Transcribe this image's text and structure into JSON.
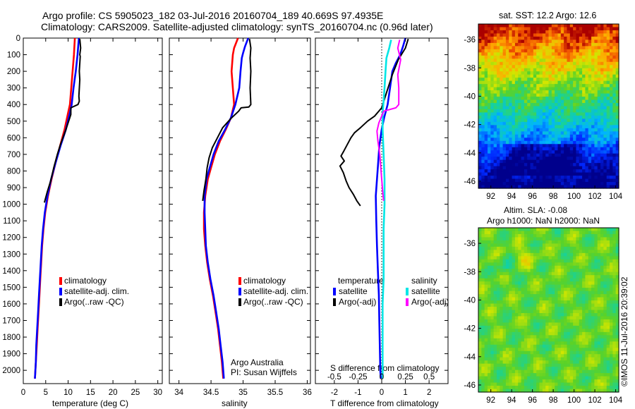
{
  "header": {
    "line1": "Argo profile: CS 5905023_182 03-Jul-2016 20160704_189 40.669S 97.4935E",
    "line2": "Climatology: CARS2009. Satellite-adjusted climatology: synTS_20160704.nc (0.96d later)"
  },
  "sst_title": "sat. SST: 12.2 Argo: 12.6",
  "sla_title1": "Altim. SLA: -0.08",
  "sla_title2": "Argo h1000: NaN h2000: NaN",
  "credit": "©IMOS 11-Jul-2016 20:39:02",
  "argo_credit": {
    "line1": "Argo Australia",
    "line2": "PI: Susan Wijffels"
  },
  "colors": {
    "climatology": "#ff0000",
    "satellite": "#0000ff",
    "argo": "#000000",
    "sal_satellite": "#00e6e6",
    "sal_argo": "#ff00ff"
  },
  "legend_tp": [
    "climatology",
    "satellite-adj. clim.",
    "Argo(..raw -QC)"
  ],
  "legend_diff": {
    "temp_head": "temperature",
    "sal_head": "salinity",
    "temp_items": [
      "satellite",
      "Argo(-adj)"
    ],
    "sal_items": [
      "satellite",
      "Argo(-adj)"
    ]
  },
  "chart_data": [
    {
      "type": "line",
      "xlabel": "temperature (deg C)",
      "xlim": [
        0,
        31
      ],
      "xticks": [
        "0",
        "5",
        "10",
        "15",
        "20",
        "25",
        "30"
      ],
      "ylim": [
        2080,
        0
      ],
      "yticks": [
        "0",
        "100",
        "200",
        "300",
        "400",
        "500",
        "600",
        "700",
        "800",
        "900",
        "1000",
        "1100",
        "1200",
        "1300",
        "1400",
        "1500",
        "1600",
        "1700",
        "1800",
        "1900",
        "2000"
      ],
      "series": [
        {
          "name": "climatology",
          "points": [
            [
              11.5,
              0
            ],
            [
              11.3,
              100
            ],
            [
              11,
              200
            ],
            [
              10.7,
              300
            ],
            [
              10.4,
              400
            ],
            [
              10,
              450
            ],
            [
              9.2,
              550
            ],
            [
              8.2,
              650
            ],
            [
              7.2,
              750
            ],
            [
              6.3,
              850
            ],
            [
              5.5,
              950
            ],
            [
              4.9,
              1050
            ],
            [
              4.5,
              1150
            ],
            [
              4.2,
              1250
            ],
            [
              4,
              1350
            ],
            [
              3.8,
              1450
            ],
            [
              3.6,
              1550
            ],
            [
              3.4,
              1650
            ],
            [
              3.2,
              1750
            ],
            [
              3,
              1850
            ],
            [
              2.8,
              1950
            ],
            [
              2.6,
              2050
            ]
          ]
        },
        {
          "name": "satellite-adj. clim.",
          "points": [
            [
              12.4,
              0
            ],
            [
              12.1,
              100
            ],
            [
              11.7,
              200
            ],
            [
              11.2,
              300
            ],
            [
              10.8,
              400
            ],
            [
              10.4,
              450
            ],
            [
              9.5,
              550
            ],
            [
              8.3,
              650
            ],
            [
              7.2,
              750
            ],
            [
              6.2,
              850
            ],
            [
              5.4,
              950
            ],
            [
              4.8,
              1050
            ],
            [
              4.4,
              1150
            ],
            [
              4.1,
              1250
            ],
            [
              3.9,
              1350
            ],
            [
              3.7,
              1450
            ],
            [
              3.5,
              1550
            ],
            [
              3.3,
              1650
            ],
            [
              3.1,
              1750
            ],
            [
              2.9,
              1850
            ],
            [
              2.8,
              1950
            ],
            [
              2.6,
              2050
            ]
          ]
        },
        {
          "name": "Argo(..raw -QC)",
          "points": [
            [
              12.6,
              5
            ],
            [
              12.8,
              60
            ],
            [
              12.6,
              100
            ],
            [
              12.7,
              110
            ],
            [
              12.5,
              200
            ],
            [
              12.6,
              250
            ],
            [
              12.4,
              350
            ],
            [
              12.5,
              380
            ],
            [
              12.2,
              400
            ],
            [
              10.6,
              420
            ],
            [
              10.6,
              460
            ],
            [
              9.4,
              560
            ],
            [
              8.3,
              640
            ],
            [
              7.6,
              700
            ],
            [
              6.8,
              780
            ],
            [
              6.1,
              860
            ],
            [
              5.3,
              930
            ],
            [
              4.7,
              990
            ]
          ]
        }
      ]
    },
    {
      "type": "line",
      "xlabel": "salinity",
      "xlim": [
        33.85,
        36.05
      ],
      "xticks": [
        "34",
        "34.5",
        "35",
        "35.5",
        "36"
      ],
      "ylim": [
        2080,
        0
      ],
      "series": [
        {
          "name": "climatology",
          "points": [
            [
              34.92,
              0
            ],
            [
              34.86,
              60
            ],
            [
              34.84,
              100
            ],
            [
              34.83,
              150
            ],
            [
              34.82,
              200
            ],
            [
              34.84,
              300
            ],
            [
              34.86,
              400
            ],
            [
              34.81,
              480
            ],
            [
              34.73,
              550
            ],
            [
              34.64,
              620
            ],
            [
              34.56,
              700
            ],
            [
              34.5,
              780
            ],
            [
              34.45,
              850
            ],
            [
              34.41,
              950
            ],
            [
              34.39,
              1050
            ],
            [
              34.39,
              1150
            ],
            [
              34.41,
              1250
            ],
            [
              34.44,
              1350
            ],
            [
              34.48,
              1450
            ],
            [
              34.53,
              1550
            ],
            [
              34.57,
              1650
            ],
            [
              34.61,
              1750
            ],
            [
              34.64,
              1850
            ],
            [
              34.67,
              1950
            ],
            [
              34.69,
              2050
            ]
          ]
        },
        {
          "name": "satellite-adj. clim.",
          "points": [
            [
              35.08,
              0
            ],
            [
              35.03,
              50
            ],
            [
              35.0,
              90
            ],
            [
              34.98,
              120
            ],
            [
              34.96,
              200
            ],
            [
              34.94,
              300
            ],
            [
              34.88,
              400
            ],
            [
              34.81,
              480
            ],
            [
              34.72,
              550
            ],
            [
              34.62,
              620
            ],
            [
              34.54,
              700
            ],
            [
              34.48,
              780
            ],
            [
              34.43,
              850
            ],
            [
              34.4,
              950
            ],
            [
              34.4,
              1050
            ],
            [
              34.41,
              1150
            ],
            [
              34.42,
              1250
            ],
            [
              34.45,
              1350
            ],
            [
              34.49,
              1450
            ],
            [
              34.54,
              1550
            ],
            [
              34.58,
              1650
            ],
            [
              34.62,
              1750
            ],
            [
              34.65,
              1850
            ],
            [
              34.68,
              1950
            ],
            [
              34.7,
              2050
            ]
          ]
        },
        {
          "name": "Argo(..raw -QC)",
          "points": [
            [
              35.1,
              5
            ],
            [
              35.12,
              60
            ],
            [
              35.11,
              120
            ],
            [
              35.12,
              200
            ],
            [
              35.11,
              300
            ],
            [
              35.12,
              400
            ],
            [
              35.09,
              415
            ],
            [
              34.97,
              420
            ],
            [
              34.93,
              440
            ],
            [
              34.82,
              480
            ],
            [
              34.68,
              540
            ],
            [
              34.6,
              600
            ],
            [
              34.52,
              660
            ],
            [
              34.47,
              720
            ],
            [
              34.44,
              780
            ],
            [
              34.42,
              850
            ],
            [
              34.39,
              920
            ],
            [
              34.37,
              980
            ]
          ]
        }
      ]
    },
    {
      "type": "line",
      "xlabel": "T difference from climatology",
      "xlabel2": "S difference from climatology",
      "xlim": [
        -2.8,
        2.8
      ],
      "xticks": [
        "-2",
        "-1",
        "0",
        "1",
        "2"
      ],
      "xticks_top": [
        "-0.5",
        "-0.25",
        "0",
        "0.25",
        "0.5"
      ],
      "ylim": [
        2080,
        0
      ],
      "series": [
        {
          "name": "temperature satellite",
          "points": [
            [
              1.0,
              0
            ],
            [
              0.9,
              50
            ],
            [
              0.78,
              100
            ],
            [
              0.6,
              150
            ],
            [
              0.45,
              200
            ],
            [
              0.35,
              300
            ],
            [
              0.25,
              400
            ],
            [
              0.1,
              480
            ],
            [
              0.0,
              550
            ],
            [
              -0.1,
              650
            ],
            [
              -0.15,
              750
            ],
            [
              -0.2,
              850
            ],
            [
              -0.25,
              950
            ],
            [
              -0.23,
              1100
            ],
            [
              -0.2,
              1250
            ],
            [
              -0.16,
              1400
            ],
            [
              -0.12,
              1550
            ],
            [
              -0.1,
              1700
            ],
            [
              -0.08,
              1850
            ],
            [
              -0.06,
              2000
            ],
            [
              -0.04,
              2050
            ]
          ]
        },
        {
          "name": "temperature Argo(-adj)",
          "points": [
            [
              1.12,
              5
            ],
            [
              1.0,
              60
            ],
            [
              0.7,
              130
            ],
            [
              0.45,
              220
            ],
            [
              0.2,
              330
            ],
            [
              0.0,
              420
            ],
            [
              -0.3,
              470
            ],
            [
              -0.6,
              500
            ],
            [
              -0.9,
              540
            ],
            [
              -1.15,
              570
            ],
            [
              -1.3,
              600
            ],
            [
              -1.45,
              640
            ],
            [
              -1.6,
              680
            ],
            [
              -1.72,
              710
            ],
            [
              -1.58,
              740
            ],
            [
              -1.76,
              770
            ],
            [
              -1.62,
              810
            ],
            [
              -1.5,
              860
            ],
            [
              -1.38,
              900
            ],
            [
              -1.2,
              940
            ],
            [
              -1.05,
              980
            ],
            [
              -0.9,
              1010
            ]
          ]
        },
        {
          "name": "salinity satellite",
          "points": [
            [
              0.1,
              10
            ],
            [
              0.08,
              60
            ],
            [
              0.05,
              120
            ],
            [
              0.04,
              200
            ],
            [
              0.03,
              300
            ],
            [
              0.02,
              380
            ],
            [
              0.01,
              450
            ],
            [
              0.01,
              550
            ],
            [
              0.02,
              700
            ],
            [
              0.03,
              850
            ],
            [
              0.03,
              1000
            ],
            [
              0.02,
              1150
            ],
            [
              0.02,
              1300
            ],
            [
              0.02,
              1450
            ],
            [
              0.01,
              1600
            ],
            [
              0.01,
              1800
            ],
            [
              0.01,
              2000
            ],
            [
              0.01,
              2050
            ]
          ]
        },
        {
          "name": "salinity Argo(-adj)",
          "points": [
            [
              0.19,
              10
            ],
            [
              0.17,
              60
            ],
            [
              0.2,
              130
            ],
            [
              0.17,
              220
            ],
            [
              0.18,
              300
            ],
            [
              0.18,
              400
            ],
            [
              0.15,
              420
            ],
            [
              0.02,
              440
            ],
            [
              0.0,
              470
            ],
            [
              -0.03,
              510
            ],
            [
              -0.05,
              560
            ],
            [
              -0.04,
              620
            ],
            [
              -0.02,
              700
            ],
            [
              -0.01,
              780
            ],
            [
              0.0,
              850
            ],
            [
              0.01,
              920
            ],
            [
              0.02,
              980
            ]
          ]
        }
      ]
    },
    {
      "type": "heatmap",
      "title": "sat. SST: 12.2 Argo: 12.6",
      "xlim": [
        90.8,
        104.3
      ],
      "ylim": [
        -46.5,
        -34.9
      ],
      "xticks": [
        "92",
        "94",
        "96",
        "98",
        "100",
        "102",
        "104"
      ],
      "yticks": [
        "-36",
        "-38",
        "-40",
        "-42",
        "-44",
        "-46"
      ]
    },
    {
      "type": "heatmap",
      "title": "Altim. SLA: -0.08",
      "xlim": [
        90.8,
        104.3
      ],
      "ylim": [
        -46.5,
        -34.9
      ],
      "xticks": [
        "92",
        "94",
        "96",
        "98",
        "100",
        "102",
        "104"
      ],
      "yticks": [
        "-36",
        "-38",
        "-40",
        "-42",
        "-44",
        "-46"
      ]
    }
  ]
}
